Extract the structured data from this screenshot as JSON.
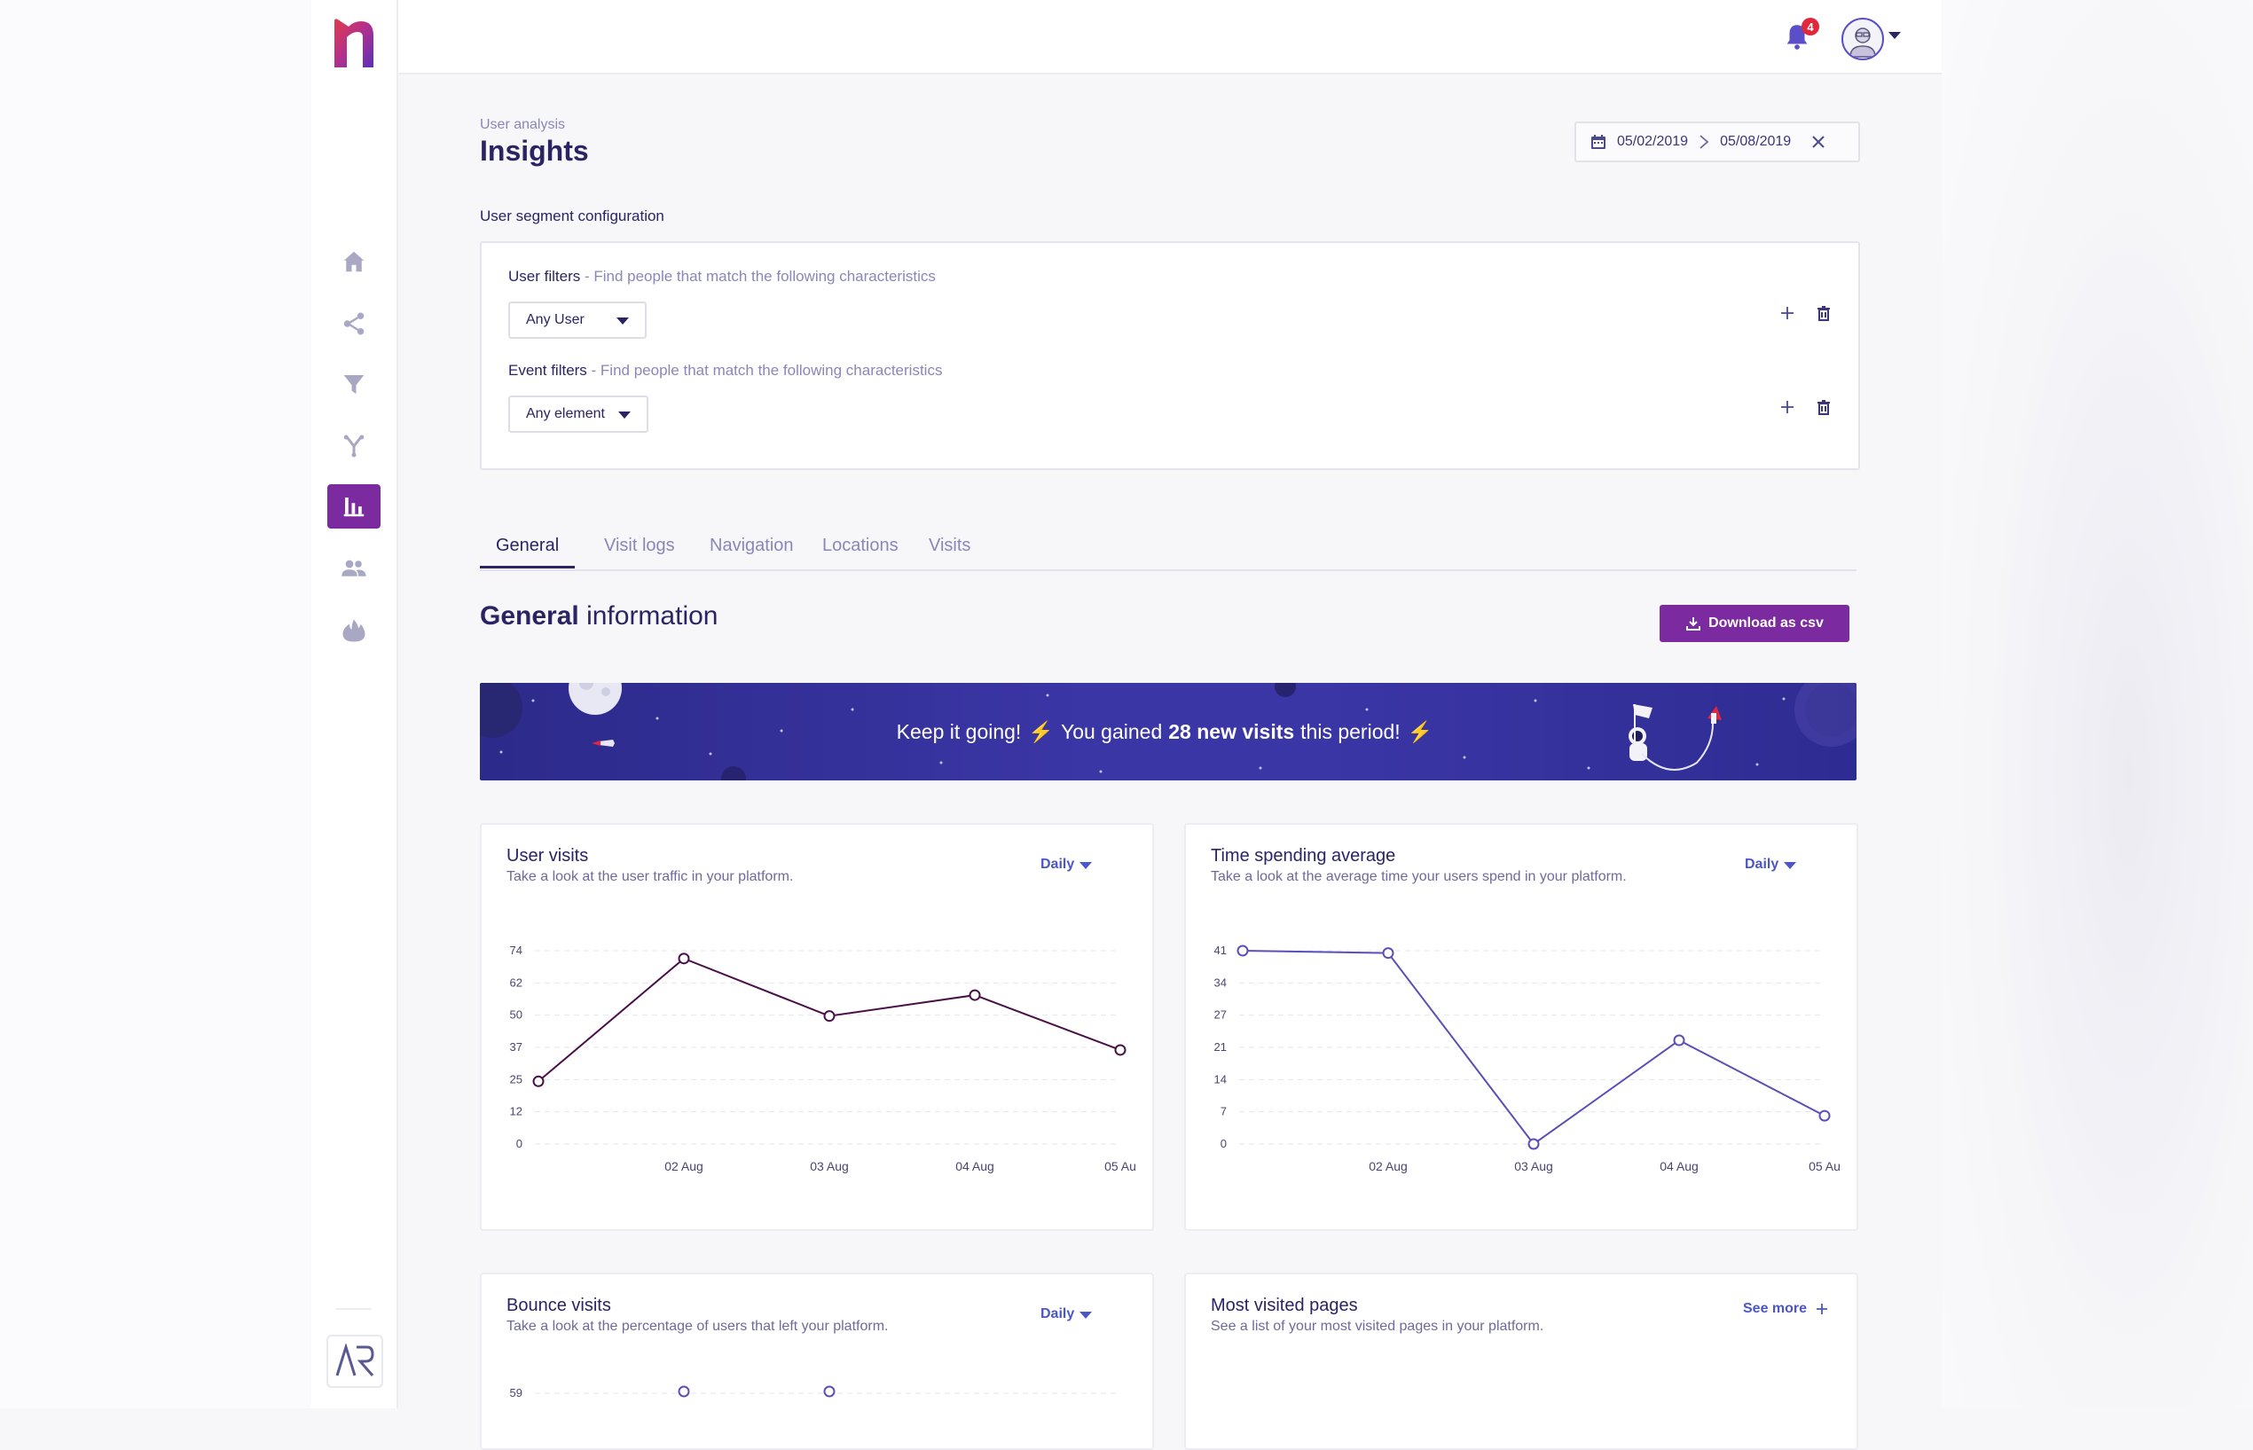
{
  "header": {
    "notifications_count": "4"
  },
  "page": {
    "eyebrow": "User analysis",
    "title": "Insights"
  },
  "date_range": {
    "start": "05/02/2019",
    "end": "05/08/2019"
  },
  "segment": {
    "title": "User segment configuration",
    "user_filters": {
      "label": "User filters",
      "description": " - Find people that match the following characteristics",
      "value": "Any User"
    },
    "event_filters": {
      "label": "Event filters",
      "description": " - Find people that match the following characteristics",
      "value": "Any element"
    }
  },
  "tabs": [
    "General",
    "Visit logs",
    "Navigation",
    "Locations",
    "Visits"
  ],
  "section": {
    "title_bold": "General",
    "title_rest": " information",
    "download_label": "Download as csv"
  },
  "banner": {
    "pre": "Keep it going!",
    "mid": "You gained",
    "bold": "28 new visits",
    "post": "this period!"
  },
  "cards": {
    "user_visits": {
      "title": "User visits",
      "subtitle": "Take a look at the user traffic in your platform.",
      "period": "Daily"
    },
    "time_spending": {
      "title": "Time spending average",
      "subtitle": "Take a look at the average time your users spend in your platform.",
      "period": "Daily"
    },
    "bounce_visits": {
      "title": "Bounce visits",
      "subtitle": "Take a look at the percentage of users that left your platform.",
      "period": "Daily"
    },
    "most_visited": {
      "title": "Most visited pages",
      "subtitle": "See a list of your most visited pages in your platform.",
      "see_more": "See more"
    }
  },
  "chart_data": [
    {
      "type": "line",
      "name": "user_visits",
      "x": [
        "",
        "02 Aug",
        "03 Aug",
        "04 Aug",
        "05 Au"
      ],
      "values": [
        24,
        71,
        49,
        57,
        36
      ],
      "yticks": [
        "0",
        "12",
        "25",
        "37",
        "50",
        "62",
        "74"
      ],
      "ylim": [
        0,
        74
      ],
      "grid": true,
      "color": "#4a1048"
    },
    {
      "type": "line",
      "name": "time_spending_average",
      "x": [
        "",
        "02 Aug",
        "03 Aug",
        "04 Aug",
        "05 Au"
      ],
      "values": [
        41,
        40.5,
        0,
        22,
        6
      ],
      "yticks": [
        "0",
        "7",
        "14",
        "21",
        "27",
        "34",
        "41"
      ],
      "ylim": [
        0,
        41
      ],
      "grid": true,
      "color": "#5a4fb8"
    },
    {
      "type": "line",
      "name": "bounce_visits",
      "yticks": [
        "59"
      ],
      "color": "#5a4fb8"
    }
  ],
  "colors": {
    "accent": "#7b2aa0",
    "primary_text": "#2a2464",
    "link": "#4c56c8"
  }
}
